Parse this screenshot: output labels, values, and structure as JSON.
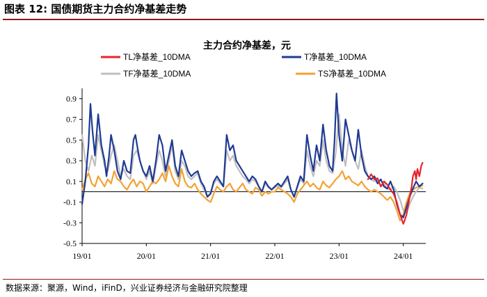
{
  "figure": {
    "label": "图表 12:",
    "title": "国债期货主力合约净基差走势",
    "source": "数据来源：聚源，Wind，iFinD，兴业证券经济与金融研究院整理"
  },
  "chart_data": {
    "type": "line",
    "title": "主力合约净基差，元",
    "xlabel": "",
    "ylabel": "",
    "ylim": [
      -0.5,
      1.0
    ],
    "yticks": [
      -0.5,
      -0.3,
      -0.1,
      0.1,
      0.3,
      0.5,
      0.7,
      0.9
    ],
    "ytick_labels": [
      "-0.5",
      "-0.3",
      "-0.1",
      "0.1",
      "0.3",
      "0.5",
      "0.7",
      "0.9"
    ],
    "xlim": [
      2019.0,
      2024.35
    ],
    "xticks": [
      2019.0,
      2020.0,
      2021.0,
      2022.0,
      2023.0,
      2024.0
    ],
    "xtick_labels": [
      "19/01",
      "20/01",
      "21/01",
      "22/01",
      "23/01",
      "24/01"
    ],
    "legend_position": "top",
    "series": [
      {
        "name": "TL净基差_10DMA",
        "color": "#e8232a",
        "x": [
          2023.45,
          2023.5,
          2023.55,
          2023.6,
          2023.65,
          2023.7,
          2023.75,
          2023.8,
          2023.85,
          2023.9,
          2023.95,
          2024.0,
          2024.02,
          2024.05,
          2024.08,
          2024.1,
          2024.13,
          2024.15,
          2024.18,
          2024.2,
          2024.22,
          2024.25,
          2024.28,
          2024.3
        ],
        "y": [
          0.12,
          0.17,
          0.12,
          0.13,
          0.05,
          0.1,
          0.07,
          0.02,
          -0.02,
          -0.1,
          -0.22,
          -0.31,
          -0.28,
          -0.22,
          -0.12,
          -0.05,
          0.05,
          0.15,
          0.2,
          0.12,
          0.22,
          0.15,
          0.25,
          0.28
        ]
      },
      {
        "name": "T净基差_10DMA",
        "color": "#1f3a93",
        "x": [
          2019.0,
          2019.05,
          2019.1,
          2019.13,
          2019.16,
          2019.2,
          2019.25,
          2019.3,
          2019.35,
          2019.38,
          2019.42,
          2019.45,
          2019.5,
          2019.55,
          2019.6,
          2019.65,
          2019.7,
          2019.75,
          2019.8,
          2019.83,
          2019.87,
          2019.9,
          2019.95,
          2020.0,
          2020.05,
          2020.1,
          2020.15,
          2020.2,
          2020.25,
          2020.3,
          2020.35,
          2020.4,
          2020.45,
          2020.5,
          2020.55,
          2020.6,
          2020.65,
          2020.7,
          2020.75,
          2020.8,
          2020.85,
          2020.9,
          2020.95,
          2021.0,
          2021.05,
          2021.1,
          2021.15,
          2021.2,
          2021.25,
          2021.3,
          2021.35,
          2021.4,
          2021.45,
          2021.5,
          2021.55,
          2021.6,
          2021.65,
          2021.7,
          2021.75,
          2021.8,
          2021.85,
          2021.9,
          2021.95,
          2022.0,
          2022.05,
          2022.1,
          2022.15,
          2022.2,
          2022.25,
          2022.3,
          2022.35,
          2022.4,
          2022.45,
          2022.5,
          2022.55,
          2022.6,
          2022.65,
          2022.7,
          2022.75,
          2022.8,
          2022.85,
          2022.9,
          2022.93,
          2022.96,
          2023.0,
          2023.05,
          2023.1,
          2023.15,
          2023.2,
          2023.25,
          2023.3,
          2023.35,
          2023.4,
          2023.45,
          2023.5,
          2023.55,
          2023.6,
          2023.65,
          2023.7,
          2023.75,
          2023.8,
          2023.85,
          2023.9,
          2023.95,
          2024.0,
          2024.05,
          2024.1,
          2024.15,
          2024.2,
          2024.25,
          2024.3
        ],
        "y": [
          -0.12,
          0.1,
          0.45,
          0.85,
          0.6,
          0.35,
          0.75,
          0.45,
          0.3,
          0.15,
          0.35,
          0.55,
          0.4,
          0.2,
          0.12,
          0.3,
          0.2,
          0.18,
          0.5,
          0.55,
          0.4,
          0.3,
          0.2,
          0.15,
          0.25,
          0.1,
          0.3,
          0.55,
          0.45,
          0.2,
          0.35,
          0.5,
          0.25,
          0.15,
          0.4,
          0.3,
          0.2,
          0.15,
          0.18,
          0.2,
          0.1,
          0.05,
          -0.05,
          -0.02,
          0.1,
          0.15,
          0.1,
          0.05,
          0.55,
          0.4,
          0.45,
          0.3,
          0.25,
          0.2,
          0.15,
          0.1,
          0.15,
          0.12,
          0.05,
          0.0,
          0.1,
          0.05,
          0.02,
          0.05,
          0.08,
          0.05,
          0.1,
          0.15,
          0.02,
          -0.05,
          0.05,
          0.15,
          0.1,
          0.55,
          0.35,
          0.2,
          0.45,
          0.3,
          0.65,
          0.4,
          0.25,
          0.2,
          0.5,
          0.95,
          0.55,
          0.3,
          0.7,
          0.55,
          0.4,
          0.3,
          0.6,
          0.35,
          0.2,
          0.15,
          0.12,
          0.15,
          0.08,
          0.12,
          0.05,
          0.03,
          0.1,
          0.02,
          -0.12,
          -0.22,
          -0.25,
          -0.15,
          -0.05,
          0.03,
          0.1,
          0.05,
          0.08
        ]
      },
      {
        "name": "TF净基差_10DMA",
        "color": "#bfbfbf",
        "x": [
          2019.0,
          2019.05,
          2019.1,
          2019.15,
          2019.2,
          2019.25,
          2019.3,
          2019.35,
          2019.4,
          2019.45,
          2019.5,
          2019.55,
          2019.6,
          2019.65,
          2019.7,
          2019.75,
          2019.8,
          2019.85,
          2019.9,
          2019.95,
          2020.0,
          2020.05,
          2020.1,
          2020.15,
          2020.2,
          2020.25,
          2020.3,
          2020.35,
          2020.4,
          2020.45,
          2020.5,
          2020.55,
          2020.6,
          2020.65,
          2020.7,
          2020.75,
          2020.8,
          2020.85,
          2020.9,
          2020.95,
          2021.0,
          2021.05,
          2021.1,
          2021.15,
          2021.2,
          2021.25,
          2021.3,
          2021.35,
          2021.4,
          2021.45,
          2021.5,
          2021.55,
          2021.6,
          2021.65,
          2021.7,
          2021.75,
          2021.8,
          2021.85,
          2021.9,
          2021.95,
          2022.0,
          2022.05,
          2022.1,
          2022.15,
          2022.2,
          2022.25,
          2022.3,
          2022.35,
          2022.4,
          2022.45,
          2022.5,
          2022.55,
          2022.6,
          2022.65,
          2022.7,
          2022.75,
          2022.8,
          2022.85,
          2022.9,
          2022.95,
          2023.0,
          2023.05,
          2023.1,
          2023.15,
          2023.2,
          2023.25,
          2023.3,
          2023.35,
          2023.4,
          2023.45,
          2023.5,
          2023.55,
          2023.6,
          2023.65,
          2023.7,
          2023.75,
          2023.8,
          2023.85,
          2023.9,
          2023.95,
          2024.0,
          2024.05,
          2024.1,
          2024.15,
          2024.2,
          2024.25,
          2024.3
        ],
        "y": [
          0.55,
          0.3,
          0.2,
          0.35,
          0.25,
          0.55,
          0.4,
          0.25,
          0.2,
          0.35,
          0.45,
          0.3,
          0.15,
          0.22,
          0.15,
          0.12,
          0.35,
          0.4,
          0.3,
          0.2,
          0.12,
          0.2,
          0.08,
          0.25,
          0.4,
          0.3,
          0.15,
          0.3,
          0.45,
          0.2,
          0.12,
          0.3,
          0.25,
          0.15,
          0.12,
          0.15,
          0.18,
          0.08,
          0.02,
          -0.05,
          0.0,
          0.08,
          0.12,
          0.08,
          0.05,
          0.4,
          0.3,
          0.35,
          0.25,
          0.2,
          0.15,
          0.12,
          0.08,
          0.12,
          0.1,
          0.05,
          0.0,
          0.08,
          0.04,
          0.02,
          0.04,
          0.06,
          0.04,
          0.08,
          0.12,
          0.02,
          -0.05,
          0.04,
          0.12,
          0.08,
          0.4,
          0.25,
          0.15,
          0.3,
          0.25,
          0.5,
          0.3,
          0.2,
          0.18,
          0.38,
          0.75,
          0.4,
          0.25,
          0.5,
          0.4,
          0.3,
          0.22,
          0.4,
          0.25,
          0.15,
          0.12,
          0.1,
          0.12,
          0.05,
          0.08,
          0.03,
          0.02,
          0.05,
          0.0,
          -0.08,
          -0.18,
          -0.2,
          -0.12,
          -0.05,
          0.0,
          0.04,
          0.03
        ]
      },
      {
        "name": "TS净基差_10DMA",
        "color": "#f4a132",
        "x": [
          2019.0,
          2019.05,
          2019.1,
          2019.15,
          2019.2,
          2019.25,
          2019.3,
          2019.35,
          2019.4,
          2019.45,
          2019.5,
          2019.55,
          2019.6,
          2019.65,
          2019.7,
          2019.75,
          2019.8,
          2019.85,
          2019.9,
          2019.95,
          2020.0,
          2020.05,
          2020.1,
          2020.15,
          2020.2,
          2020.25,
          2020.3,
          2020.35,
          2020.4,
          2020.45,
          2020.5,
          2020.55,
          2020.6,
          2020.65,
          2020.7,
          2020.75,
          2020.8,
          2020.85,
          2020.9,
          2020.95,
          2021.0,
          2021.05,
          2021.1,
          2021.15,
          2021.2,
          2021.25,
          2021.3,
          2021.35,
          2021.4,
          2021.45,
          2021.5,
          2021.55,
          2021.6,
          2021.65,
          2021.7,
          2021.75,
          2021.8,
          2021.85,
          2021.9,
          2021.95,
          2022.0,
          2022.05,
          2022.1,
          2022.15,
          2022.2,
          2022.25,
          2022.3,
          2022.35,
          2022.4,
          2022.45,
          2022.5,
          2022.55,
          2022.6,
          2022.65,
          2022.7,
          2022.75,
          2022.8,
          2022.85,
          2022.9,
          2022.95,
          2023.0,
          2023.05,
          2023.1,
          2023.15,
          2023.2,
          2023.25,
          2023.3,
          2023.35,
          2023.4,
          2023.45,
          2023.5,
          2023.55,
          2023.6,
          2023.65,
          2023.7,
          2023.75,
          2023.8,
          2023.85,
          2023.9,
          2023.95,
          2024.0,
          2024.05,
          2024.1,
          2024.15,
          2024.2,
          2024.25,
          2024.3
        ],
        "y": [
          0.02,
          0.12,
          0.18,
          0.08,
          0.05,
          0.15,
          0.1,
          0.05,
          0.12,
          0.08,
          0.2,
          0.12,
          0.1,
          0.05,
          0.02,
          0.08,
          0.12,
          0.05,
          0.1,
          0.08,
          0.0,
          0.05,
          0.1,
          0.08,
          0.12,
          0.18,
          0.1,
          0.25,
          0.15,
          0.08,
          0.05,
          0.22,
          0.1,
          0.05,
          0.04,
          0.08,
          0.02,
          -0.02,
          -0.05,
          -0.08,
          -0.1,
          -0.02,
          0.05,
          0.02,
          0.0,
          0.05,
          0.08,
          0.02,
          0.0,
          0.04,
          0.08,
          0.02,
          0.0,
          -0.02,
          0.04,
          0.02,
          -0.04,
          0.0,
          -0.02,
          0.0,
          0.0,
          0.04,
          0.02,
          0.0,
          -0.02,
          -0.05,
          -0.1,
          -0.02,
          0.02,
          0.06,
          0.1,
          0.05,
          0.08,
          0.04,
          0.02,
          0.1,
          0.06,
          0.04,
          0.08,
          0.12,
          0.15,
          0.2,
          0.12,
          0.15,
          0.1,
          0.08,
          0.06,
          0.1,
          0.05,
          0.02,
          0.0,
          0.02,
          0.0,
          -0.02,
          -0.05,
          -0.08,
          -0.05,
          -0.1,
          -0.18,
          -0.28,
          -0.22,
          -0.1,
          -0.02,
          0.02,
          0.04,
          0.05,
          0.06
        ]
      }
    ]
  }
}
